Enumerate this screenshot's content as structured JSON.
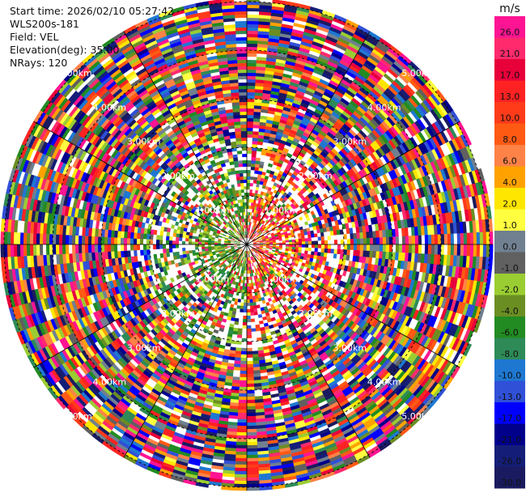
{
  "header": {
    "start_time": "Start time: 2026/02/10 05:27:42",
    "instrument": "WLS200s-181",
    "field": "Field: VEL",
    "elevation": "Elevation(deg): 35.00",
    "nrays": "NRays: 120"
  },
  "chart_data": {
    "type": "heatmap",
    "projection": "polar-ppi",
    "rays": 120,
    "ring_labels": [
      "1.00km",
      "2.00km",
      "3.00km",
      "4.00km",
      "5.00km"
    ],
    "colorbar": {
      "unit": "m/s",
      "ticks": [
        "26.0",
        "21.0",
        "17.0",
        "13.0",
        "10.0",
        "8.0",
        "6.0",
        "4.0",
        "2.0",
        "1.0",
        "0.0",
        "-1.0",
        "-2.0",
        "-4.0",
        "-6.0",
        "-8.0",
        "-10.0",
        "-13.0",
        "-17.0",
        "-21.0",
        "-26.0",
        "-30.0"
      ],
      "colors": [
        "#ff1493",
        "#ff2a6d",
        "#e8003a",
        "#ff2222",
        "#ff3b1a",
        "#ff5a14",
        "#ff8247",
        "#ffa200",
        "#ffe600",
        "#ffff40",
        "#708090",
        "#606060",
        "#9acd32",
        "#6b8e23",
        "#228b22",
        "#2e8b57",
        "#1e78d2",
        "#3050d8",
        "#0000ff",
        "#00008b",
        "#141e78",
        "#1a1a60"
      ]
    }
  }
}
